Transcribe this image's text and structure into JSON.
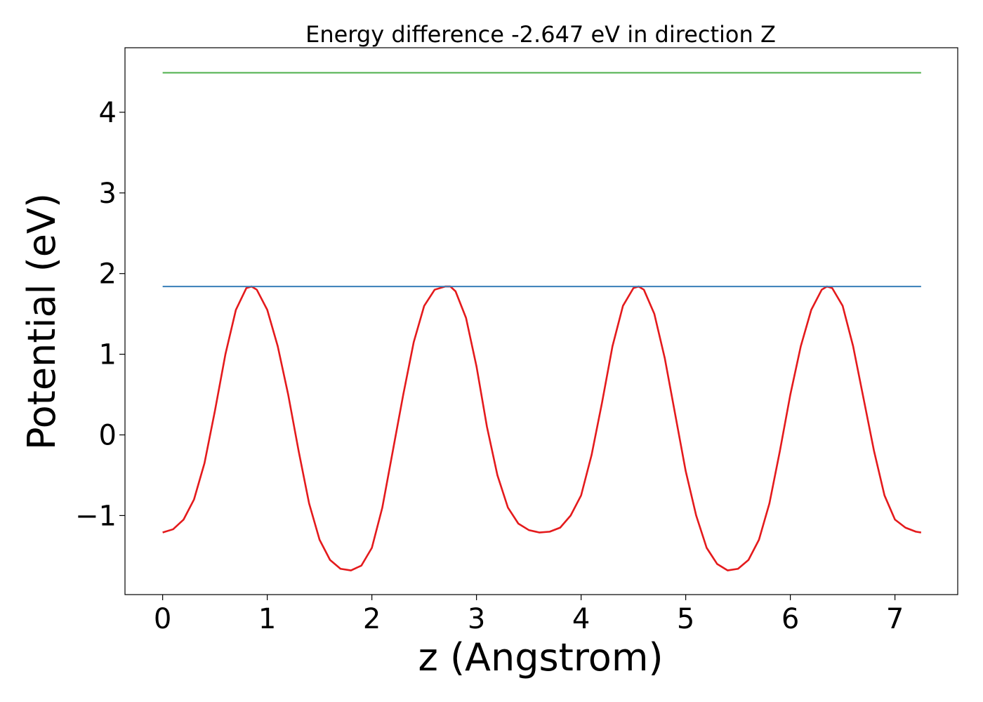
{
  "chart_data": {
    "type": "line",
    "title": "Energy difference -2.647 eV in direction Z",
    "xlabel": "z (Angstrom)",
    "ylabel": "Potential (eV)",
    "xlim": [
      -0.36,
      7.6
    ],
    "ylim": [
      -1.98,
      4.8
    ],
    "xticks": [
      0,
      1,
      2,
      3,
      4,
      5,
      6,
      7
    ],
    "xtick_labels": [
      "0",
      "1",
      "2",
      "3",
      "4",
      "5",
      "6",
      "7"
    ],
    "yticks": [
      -1,
      0,
      1,
      2,
      3,
      4
    ],
    "ytick_labels": [
      "−1",
      "0",
      "1",
      "2",
      "3",
      "4"
    ],
    "grid": false,
    "legend": "none",
    "series": [
      {
        "role": "potential",
        "color": "#e41a1c",
        "x": [
          0,
          0.1,
          0.2,
          0.3,
          0.4,
          0.5,
          0.6,
          0.7,
          0.8,
          0.85,
          0.9,
          1.0,
          1.1,
          1.2,
          1.3,
          1.4,
          1.5,
          1.6,
          1.7,
          1.8,
          1.9,
          2.0,
          2.1,
          2.2,
          2.3,
          2.4,
          2.5,
          2.6,
          2.7,
          2.75,
          2.8,
          2.9,
          3.0,
          3.1,
          3.2,
          3.3,
          3.4,
          3.5,
          3.6,
          3.7,
          3.8,
          3.9,
          4.0,
          4.1,
          4.2,
          4.3,
          4.4,
          4.5,
          4.55,
          4.6,
          4.7,
          4.8,
          4.9,
          5.0,
          5.1,
          5.2,
          5.3,
          5.4,
          5.5,
          5.6,
          5.7,
          5.8,
          5.9,
          6.0,
          6.1,
          6.2,
          6.3,
          6.35,
          6.4,
          6.5,
          6.6,
          6.7,
          6.8,
          6.9,
          7.0,
          7.1,
          7.2,
          7.25
        ],
        "y": [
          -1.21,
          -1.17,
          -1.05,
          -0.8,
          -0.35,
          0.3,
          1.0,
          1.55,
          1.82,
          1.84,
          1.8,
          1.55,
          1.1,
          0.5,
          -0.2,
          -0.85,
          -1.3,
          -1.55,
          -1.66,
          -1.68,
          -1.62,
          -1.4,
          -0.9,
          -0.2,
          0.5,
          1.15,
          1.6,
          1.8,
          1.84,
          1.84,
          1.78,
          1.45,
          0.85,
          0.1,
          -0.5,
          -0.9,
          -1.1,
          -1.18,
          -1.21,
          -1.2,
          -1.15,
          -1.0,
          -0.75,
          -0.25,
          0.4,
          1.1,
          1.6,
          1.82,
          1.84,
          1.8,
          1.5,
          0.95,
          0.25,
          -0.45,
          -1.0,
          -1.4,
          -1.6,
          -1.68,
          -1.66,
          -1.55,
          -1.3,
          -0.85,
          -0.2,
          0.5,
          1.1,
          1.55,
          1.8,
          1.84,
          1.82,
          1.6,
          1.1,
          0.45,
          -0.2,
          -0.75,
          -1.05,
          -1.15,
          -1.2,
          -1.21
        ]
      },
      {
        "role": "max-level",
        "color": "#377eb8",
        "x": [
          0,
          7.25
        ],
        "y": [
          1.84,
          1.84
        ]
      },
      {
        "role": "upper-level",
        "color": "#4daf4a",
        "x": [
          0,
          7.25
        ],
        "y": [
          4.49,
          4.49
        ]
      }
    ]
  }
}
